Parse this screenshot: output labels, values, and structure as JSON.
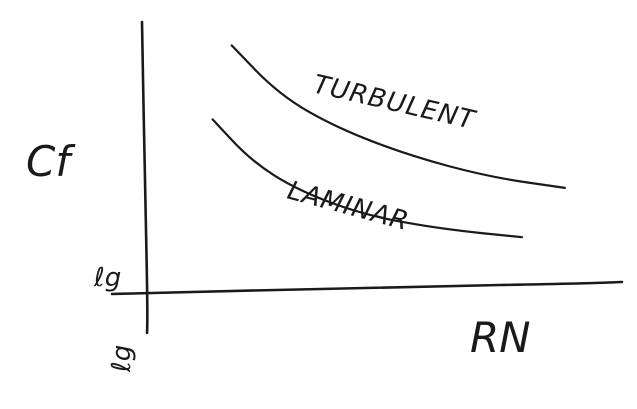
{
  "chart_data": {
    "type": "line",
    "title": "",
    "xlabel": "RN",
    "ylabel": "Cf",
    "x_origin_label": "ℓg",
    "y_origin_label": "ℓg",
    "grid": false,
    "legend": "none",
    "series": [
      {
        "name": "TURBULENT",
        "x": [
          0.18,
          0.28,
          0.4,
          0.55,
          0.72,
          0.88
        ],
        "y": [
          0.9,
          0.72,
          0.6,
          0.5,
          0.42,
          0.38
        ]
      },
      {
        "name": "LAMINAR",
        "x": [
          0.14,
          0.22,
          0.32,
          0.46,
          0.62,
          0.79
        ],
        "y": [
          0.63,
          0.48,
          0.37,
          0.28,
          0.23,
          0.2
        ]
      }
    ],
    "colors": {
      "ink": "#1a1a1a",
      "background": "#ffffff"
    }
  }
}
